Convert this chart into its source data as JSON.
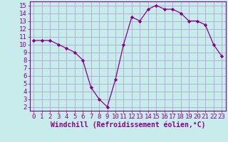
{
  "x": [
    0,
    1,
    2,
    3,
    4,
    5,
    6,
    7,
    8,
    9,
    10,
    11,
    12,
    13,
    14,
    15,
    16,
    17,
    18,
    19,
    20,
    21,
    22,
    23
  ],
  "y": [
    10.5,
    10.5,
    10.5,
    10.0,
    9.5,
    9.0,
    8.0,
    4.5,
    3.0,
    2.0,
    5.5,
    10.0,
    13.5,
    13.0,
    14.5,
    15.0,
    14.5,
    14.5,
    14.0,
    13.0,
    13.0,
    12.5,
    10.0,
    8.5
  ],
  "line_color": "#880088",
  "marker": "D",
  "marker_size": 2.2,
  "bg_color": "#c8ecec",
  "grid_color": "#aaaacc",
  "xlabel": "Windchill (Refroidissement éolien,°C)",
  "xlabel_color": "#880088",
  "xlim": [
    -0.5,
    23.5
  ],
  "ylim": [
    1.5,
    15.5
  ],
  "yticks": [
    2,
    3,
    4,
    5,
    6,
    7,
    8,
    9,
    10,
    11,
    12,
    13,
    14,
    15
  ],
  "xticks": [
    0,
    1,
    2,
    3,
    4,
    5,
    6,
    7,
    8,
    9,
    10,
    11,
    12,
    13,
    14,
    15,
    16,
    17,
    18,
    19,
    20,
    21,
    22,
    23
  ],
  "tick_label_color": "#880088",
  "spine_color": "#880088",
  "font_size": 6.5,
  "xlabel_fontsize": 7.0
}
